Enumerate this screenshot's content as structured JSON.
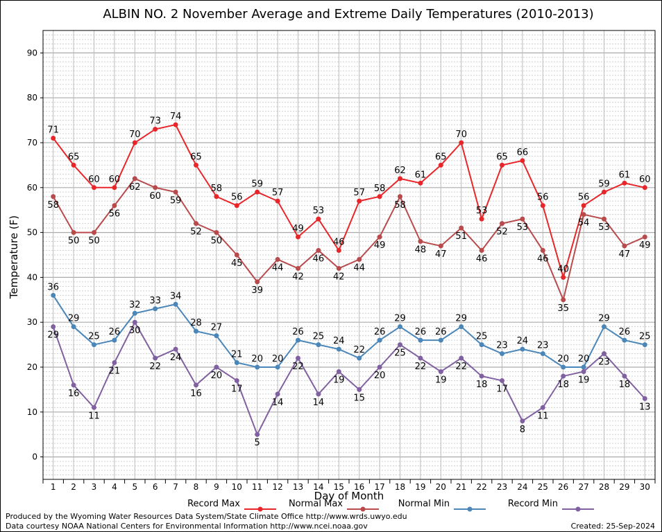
{
  "chart_data": {
    "type": "line",
    "title": "ALBIN NO. 2 November Average and Extreme Daily Temperatures (2010-2013)",
    "xlabel": "Day of Month",
    "ylabel": "Temperature (F)",
    "ylim": [
      -5,
      95
    ],
    "yticks": [
      0,
      10,
      20,
      30,
      40,
      50,
      60,
      70,
      80,
      90
    ],
    "x": [
      1,
      2,
      3,
      4,
      5,
      6,
      7,
      8,
      9,
      10,
      11,
      12,
      13,
      14,
      15,
      16,
      17,
      18,
      19,
      20,
      21,
      22,
      23,
      24,
      25,
      26,
      27,
      28,
      29,
      30
    ],
    "grid": true,
    "legend_position": "bottom",
    "series": [
      {
        "name": "Record Max",
        "color": "#e8262a",
        "values": [
          71,
          65,
          60,
          60,
          70,
          73,
          74,
          65,
          58,
          56,
          59,
          57,
          49,
          53,
          46,
          57,
          58,
          62,
          61,
          65,
          70,
          53,
          65,
          66,
          56,
          40,
          56,
          59,
          61,
          60
        ]
      },
      {
        "name": "Normal Max",
        "color": "#b84a4c",
        "values": [
          58,
          50,
          50,
          56,
          62,
          60,
          59,
          52,
          50,
          45,
          39,
          44,
          42,
          46,
          42,
          44,
          49,
          58,
          48,
          47,
          51,
          46,
          52,
          53,
          46,
          35,
          54,
          53,
          47,
          49
        ]
      },
      {
        "name": "Normal Min",
        "color": "#4a86b8",
        "values": [
          36,
          29,
          25,
          26,
          32,
          33,
          34,
          28,
          27,
          21,
          20,
          20,
          26,
          25,
          24,
          22,
          26,
          29,
          26,
          26,
          29,
          25,
          23,
          24,
          23,
          20,
          20,
          29,
          26,
          25
        ]
      },
      {
        "name": "Record Min",
        "color": "#8060a0",
        "values": [
          29,
          16,
          11,
          21,
          30,
          22,
          24,
          16,
          20,
          17,
          5,
          14,
          22,
          14,
          19,
          15,
          20,
          25,
          22,
          19,
          22,
          18,
          17,
          8,
          11,
          18,
          19,
          23,
          18,
          13
        ]
      }
    ]
  },
  "footer": {
    "credit_line1": "Produced by the Wyoming Water Resources Data System/State Climate Office http://www.wrds.uwyo.edu",
    "credit_line2": "Data courtesy NOAA National Centers for Environmental Information http://www.ncei.noaa.gov",
    "created": "Created:  25-Sep-2024"
  }
}
